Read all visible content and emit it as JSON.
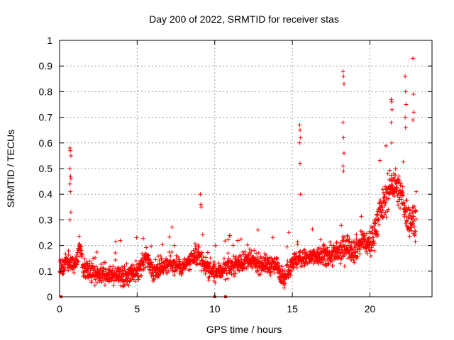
{
  "chart_data": {
    "type": "scatter",
    "title": "Day 200 of 2022, SRMTID for receiver stas",
    "xlabel": "GPS time / hours",
    "ylabel": "SRMTID / TECUs",
    "xlim": [
      0,
      24
    ],
    "ylim": [
      0,
      1
    ],
    "x_ticks": [
      0,
      5,
      10,
      15,
      20
    ],
    "x_tick_labels": [
      "0",
      "5",
      "10",
      "15",
      "20"
    ],
    "y_ticks": [
      0,
      0.1,
      0.2,
      0.3,
      0.4,
      0.5,
      0.6,
      0.7,
      0.8,
      0.9,
      1
    ],
    "y_tick_labels": [
      "0",
      "0.1",
      "0.2",
      "0.3",
      "0.4",
      "0.5",
      "0.6",
      "0.7",
      "0.8",
      "0.9",
      "1"
    ],
    "grid": true,
    "marker": "+",
    "series_color": "#ff0000",
    "baseline_trend": [
      [
        0.0,
        0.1
      ],
      [
        0.5,
        0.14
      ],
      [
        1.0,
        0.12
      ],
      [
        1.3,
        0.2
      ],
      [
        1.6,
        0.1
      ],
      [
        2.5,
        0.09
      ],
      [
        4.0,
        0.08
      ],
      [
        5.0,
        0.09
      ],
      [
        5.6,
        0.16
      ],
      [
        6.0,
        0.1
      ],
      [
        7.0,
        0.13
      ],
      [
        8.0,
        0.12
      ],
      [
        9.0,
        0.16
      ],
      [
        9.4,
        0.12
      ],
      [
        10.0,
        0.09
      ],
      [
        11.0,
        0.12
      ],
      [
        12.0,
        0.14
      ],
      [
        13.0,
        0.13
      ],
      [
        14.0,
        0.12
      ],
      [
        14.5,
        0.07
      ],
      [
        15.0,
        0.14
      ],
      [
        16.0,
        0.15
      ],
      [
        17.0,
        0.16
      ],
      [
        18.0,
        0.17
      ],
      [
        18.5,
        0.2
      ],
      [
        19.0,
        0.18
      ],
      [
        19.5,
        0.22
      ],
      [
        20.0,
        0.2
      ],
      [
        20.5,
        0.3
      ],
      [
        21.0,
        0.38
      ],
      [
        21.5,
        0.45
      ],
      [
        22.0,
        0.4
      ],
      [
        22.5,
        0.3
      ],
      [
        23.0,
        0.3
      ]
    ],
    "spikes": [
      {
        "x": 0.7,
        "values": [
          0.58,
          0.57,
          0.55,
          0.5,
          0.47,
          0.46,
          0.44,
          0.41,
          0.33,
          0.3
        ]
      },
      {
        "x": 9.1,
        "values": [
          0.4,
          0.36,
          0.35
        ]
      },
      {
        "x": 15.5,
        "values": [
          0.67,
          0.65,
          0.62,
          0.6,
          0.52,
          0.4
        ]
      },
      {
        "x": 18.3,
        "values": [
          0.88,
          0.86,
          0.83,
          0.68,
          0.62,
          0.56,
          0.51,
          0.49
        ]
      },
      {
        "x": 21.4,
        "values": [
          0.77,
          0.76,
          0.73,
          0.68,
          0.6
        ]
      },
      {
        "x": 22.3,
        "values": [
          0.86,
          0.8,
          0.75,
          0.7,
          0.66
        ]
      },
      {
        "x": 22.8,
        "values": [
          0.93,
          0.79,
          0.72,
          0.69
        ]
      }
    ],
    "zero_points": [
      0.1,
      10.0,
      10.7
    ]
  }
}
